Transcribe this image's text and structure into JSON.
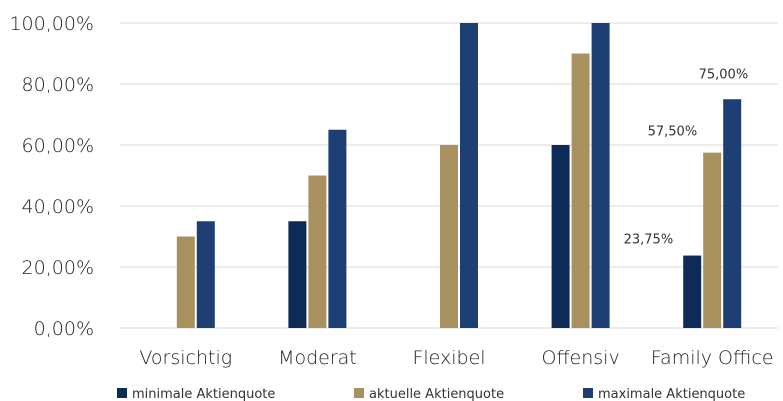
{
  "chart_data": {
    "type": "bar",
    "title": "",
    "xlabel": "",
    "ylabel": "",
    "ylim": [
      0,
      100
    ],
    "yticks": [
      0,
      20,
      40,
      60,
      80,
      100
    ],
    "ytick_labels": [
      "0,00%",
      "20,00%",
      "40,00%",
      "60,00%",
      "80,00%",
      "100,00%"
    ],
    "grid": true,
    "legend_position": "bottom",
    "categories": [
      "Vorsichtig",
      "Moderat",
      "Flexibel",
      "Offensiv",
      "Family Office"
    ],
    "series": [
      {
        "name": "minimale Aktienquote",
        "color": "#0e2a56",
        "values": [
          0,
          35,
          0,
          60,
          23.75
        ]
      },
      {
        "name": "aktuelle Aktienquote",
        "color": "#a8915f",
        "values": [
          30,
          50,
          60,
          90,
          57.5
        ]
      },
      {
        "name": "maximale Aktienquote",
        "color": "#1e3f74",
        "values": [
          35,
          65,
          100,
          100,
          75
        ]
      }
    ],
    "data_labels": [
      {
        "series": 0,
        "category": 4,
        "text": "23,75%"
      },
      {
        "series": 1,
        "category": 4,
        "text": "57,50%"
      },
      {
        "series": 2,
        "category": 4,
        "text": "75,00%"
      }
    ]
  }
}
